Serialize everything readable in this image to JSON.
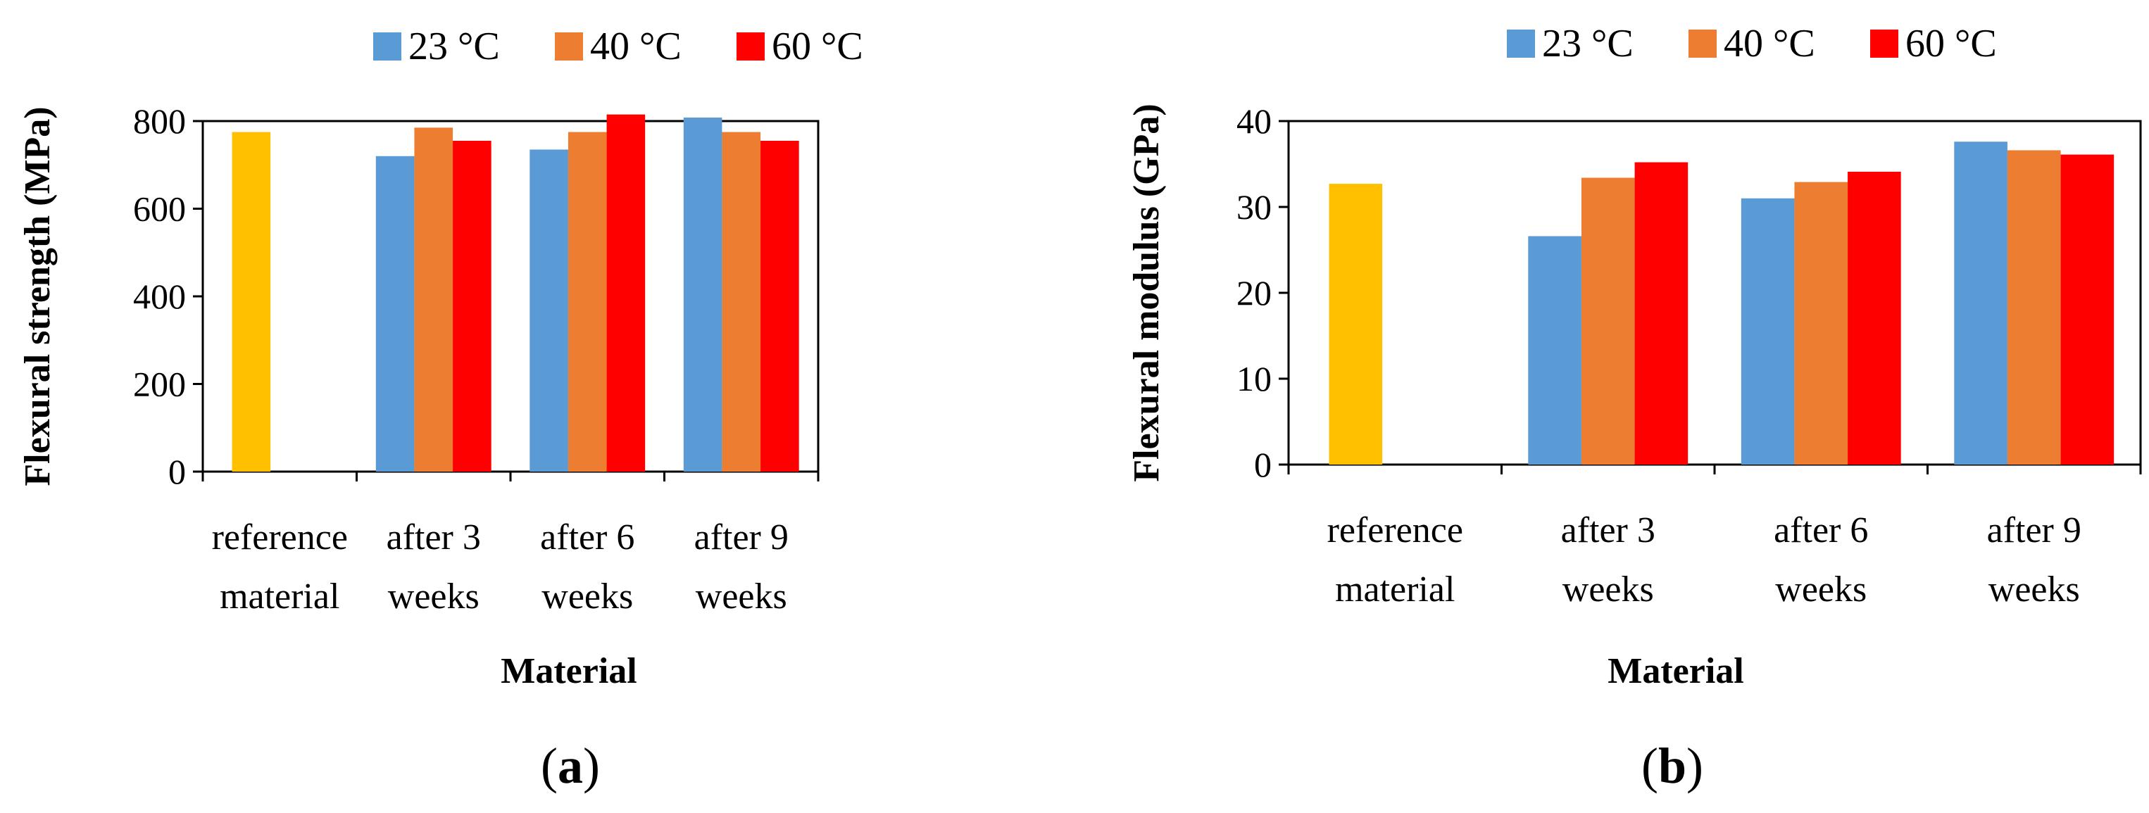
{
  "colors": {
    "reference": "#FFC000",
    "23C": "#5B9BD5",
    "40C": "#ED7D31",
    "60C": "#FF0000"
  },
  "chart_data": [
    {
      "type": "bar",
      "panel": "a",
      "panel_open": "(",
      "panel_letter": "a",
      "panel_close": ")",
      "title": "",
      "xlabel": "Material",
      "ylabel": "Flexural strength (MPa)",
      "ylim": [
        0,
        800
      ],
      "yticks": [
        "0",
        "200",
        "400",
        "600",
        "800"
      ],
      "yticks_values": [
        0,
        200,
        400,
        600,
        800
      ],
      "categories": [
        [
          "reference",
          "material"
        ],
        [
          "after 3",
          "weeks"
        ],
        [
          "after 6",
          "weeks"
        ],
        [
          "after 9",
          "weeks"
        ]
      ],
      "legend": [
        "23 °C",
        "40 °C",
        "60 °C"
      ],
      "reference": {
        "name": "reference material",
        "value": 775
      },
      "series": [
        {
          "name": "23 °C",
          "values": [
            null,
            720,
            735,
            808
          ]
        },
        {
          "name": "40 °C",
          "values": [
            null,
            785,
            775,
            775
          ]
        },
        {
          "name": "60 °C",
          "values": [
            null,
            755,
            815,
            755
          ]
        }
      ]
    },
    {
      "type": "bar",
      "panel": "b",
      "panel_open": "(",
      "panel_letter": "b",
      "panel_close": ")",
      "title": "",
      "xlabel": "Material",
      "ylabel": "Flexural modulus (GPa)",
      "ylim": [
        0,
        40
      ],
      "yticks": [
        "0",
        "10",
        "20",
        "30",
        "40"
      ],
      "yticks_values": [
        0,
        10,
        20,
        30,
        40
      ],
      "categories": [
        [
          "reference",
          "material"
        ],
        [
          "after 3",
          "weeks"
        ],
        [
          "after 6",
          "weeks"
        ],
        [
          "after 9",
          "weeks"
        ]
      ],
      "legend": [
        "23 °C",
        "40 °C",
        "60 °C"
      ],
      "reference": {
        "name": "reference material",
        "value": 32.7
      },
      "series": [
        {
          "name": "23 °C",
          "values": [
            null,
            26.6,
            31.0,
            37.6
          ]
        },
        {
          "name": "40 °C",
          "values": [
            null,
            33.4,
            32.9,
            36.6
          ]
        },
        {
          "name": "60 °C",
          "values": [
            null,
            35.2,
            34.1,
            36.1
          ]
        }
      ]
    }
  ]
}
